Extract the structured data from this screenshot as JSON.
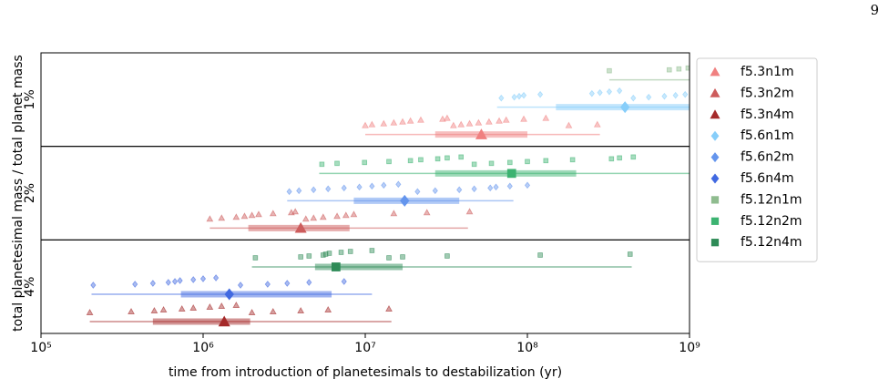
{
  "page_number": "9",
  "chart_data": {
    "type": "range-strip",
    "ylabel": "total planetesimal mass / total planet mass",
    "xlabel": "time from introduction of planetesimals to destabilization (yr)",
    "xscale": "log",
    "xlim": [
      100000,
      1000000000
    ],
    "xticks": [
      {
        "value": 100000,
        "label": "10⁵"
      },
      {
        "value": 1000000,
        "label": "10⁶"
      },
      {
        "value": 10000000,
        "label": "10⁷"
      },
      {
        "value": 100000000,
        "label": "10⁸"
      },
      {
        "value": 1000000000,
        "label": "10⁹"
      }
    ],
    "panels": [
      "1%",
      "2%",
      "4%"
    ],
    "legend": "outside-right",
    "series": [
      {
        "name": "f5.3n1m",
        "color": "#f08080",
        "marker": "triangle",
        "values": [
          {
            "points": [
              10000000,
              11000000,
              13000000,
              15000000,
              17000000,
              19000000,
              22000000,
              30000000,
              32000000,
              35000000,
              39000000,
              44000000,
              50000000,
              58000000,
              67000000,
              74000000,
              95000000,
              130000000,
              180000000,
              270000000
            ],
            "median": 52000000,
            "range": [
              10000000,
              280000000
            ],
            "iqr": [
              27000000,
              100000000
            ]
          },
          null,
          null
        ]
      },
      {
        "name": "f5.3n2m",
        "color": "#cd5c5c",
        "marker": "triangle",
        "values": [
          null,
          {
            "points": [
              1100000,
              1300000,
              1600000,
              1800000,
              2000000,
              2200000,
              2700000,
              3500000,
              3700000,
              4300000,
              4800000,
              5500000,
              6700000,
              7600000,
              8500000,
              15000000,
              24000000,
              44000000
            ],
            "median": 4000000,
            "range": [
              1100000,
              43000000
            ],
            "iqr": [
              1900000,
              8000000
            ]
          },
          null
        ]
      },
      {
        "name": "f5.3n4m",
        "color": "#a52a2a",
        "marker": "triangle",
        "values": [
          null,
          null,
          {
            "points": [
              200000,
              360000,
              500000,
              570000,
              740000,
              870000,
              1100000,
              1300000,
              1600000,
              2000000,
              2700000,
              4000000,
              5900000,
              14000000
            ],
            "median": 1350000,
            "range": [
              200000,
              14500000
            ],
            "iqr": [
              490000,
              1950000
            ]
          }
        ]
      },
      {
        "name": "f5.6n1m",
        "color": "#87cefa",
        "marker": "diamond",
        "values": [
          {
            "points": [
              69000000,
              83000000,
              89000000,
              95000000,
              120000000,
              250000000,
              280000000,
              320000000,
              370000000,
              450000000,
              560000000,
              700000000,
              820000000,
              940000000
            ],
            "median": 400000000,
            "range": [
              65000000,
              1000000000
            ],
            "iqr": [
              150000000,
              1000000000
            ]
          },
          null,
          null
        ]
      },
      {
        "name": "f5.6n2m",
        "color": "#6495ed",
        "marker": "diamond",
        "values": [
          null,
          {
            "points": [
              3400000,
              3900000,
              4800000,
              5900000,
              7400000,
              9200000,
              11000000,
              13000000,
              16000000,
              21000000,
              27000000,
              38000000,
              47000000,
              59000000,
              64000000,
              78000000,
              100000000
            ],
            "median": 17500000,
            "range": [
              3300000,
              82000000
            ],
            "iqr": [
              8500000,
              38000000
            ]
          },
          null
        ]
      },
      {
        "name": "f5.6n4m",
        "color": "#4169e1",
        "marker": "diamond",
        "values": [
          null,
          null,
          {
            "points": [
              210000,
              380000,
              490000,
              610000,
              670000,
              720000,
              870000,
              1000000,
              1200000,
              1700000,
              2500000,
              3300000,
              4500000,
              7400000
            ],
            "median": 1450000,
            "range": [
              205000,
              11000000
            ],
            "iqr": [
              730000,
              6200000
            ]
          }
        ]
      },
      {
        "name": "f5.12n1m",
        "color": "#8fbc8f",
        "marker": "square",
        "values": [
          {
            "points": [
              320000000,
              750000000,
              860000000,
              980000000
            ],
            "median": null,
            "range": [
              320000000,
              1000000000
            ],
            "iqr": null
          },
          null,
          null
        ]
      },
      {
        "name": "f5.12n2m",
        "color": "#3cb371",
        "marker": "square",
        "values": [
          null,
          {
            "points": [
              5400000,
              6700000,
              9900000,
              14000000,
              19000000,
              22000000,
              28000000,
              32000000,
              39000000,
              47000000,
              60000000,
              78000000,
              100000000,
              130000000,
              190000000,
              330000000,
              370000000,
              450000000
            ],
            "median": 80000000,
            "range": [
              5200000,
              1000000000
            ],
            "iqr": [
              27000000,
              200000000
            ]
          },
          null
        ]
      },
      {
        "name": "f5.12n4m",
        "color": "#2e8b57",
        "marker": "square",
        "values": [
          null,
          null,
          {
            "points": [
              2100000,
              4000000,
              4500000,
              5500000,
              5700000,
              6000000,
              7100000,
              8100000,
              11000000,
              14000000,
              17000000,
              32000000,
              120000000,
              430000000
            ],
            "median": 6600000,
            "range": [
              2000000,
              440000000
            ],
            "iqr": [
              4900000,
              17000000
            ]
          }
        ]
      }
    ]
  }
}
